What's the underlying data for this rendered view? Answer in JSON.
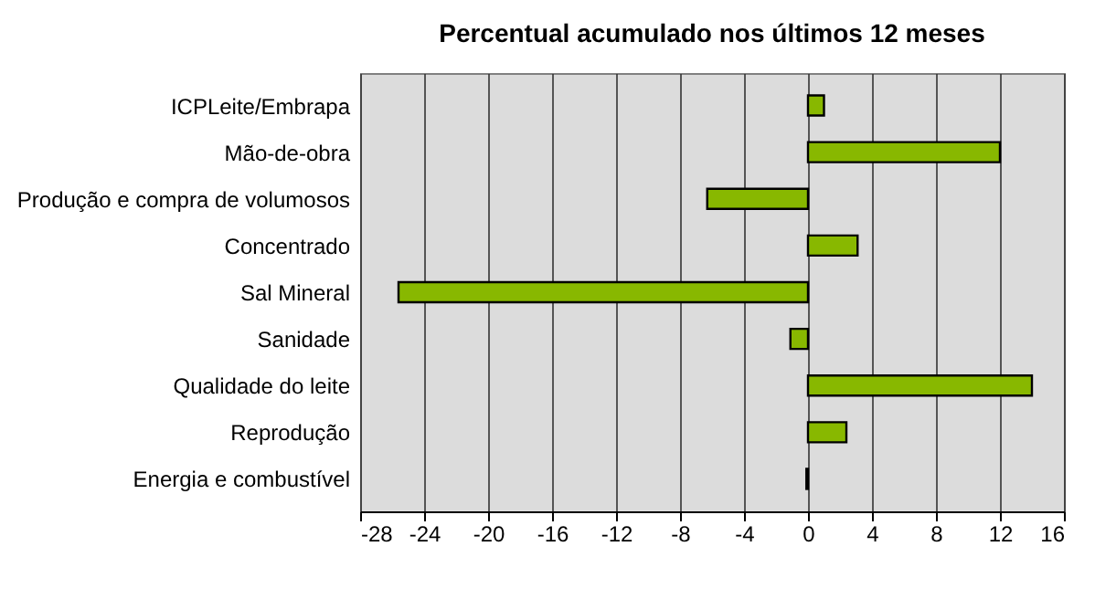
{
  "chart_data": {
    "type": "bar",
    "orientation": "horizontal",
    "title": "Percentual acumulado nos últimos 12 meses",
    "categories": [
      "ICPLeite/Embrapa",
      "Mão-de-obra",
      "Produção e compra de volumosos",
      "Concentrado",
      "Sal Mineral",
      "Sanidade",
      "Qualidade do leite",
      "Reprodução",
      "Energia e combustível"
    ],
    "values": [
      1.0,
      12.0,
      -6.3,
      3.1,
      -25.6,
      -1.1,
      14.0,
      2.4,
      -0.1
    ],
    "color": "#88b800",
    "xlim": [
      -28,
      16
    ],
    "xticks": [
      -28,
      -24,
      -20,
      -16,
      -12,
      -8,
      -4,
      0,
      4,
      8,
      12,
      16
    ],
    "grid": "x"
  }
}
